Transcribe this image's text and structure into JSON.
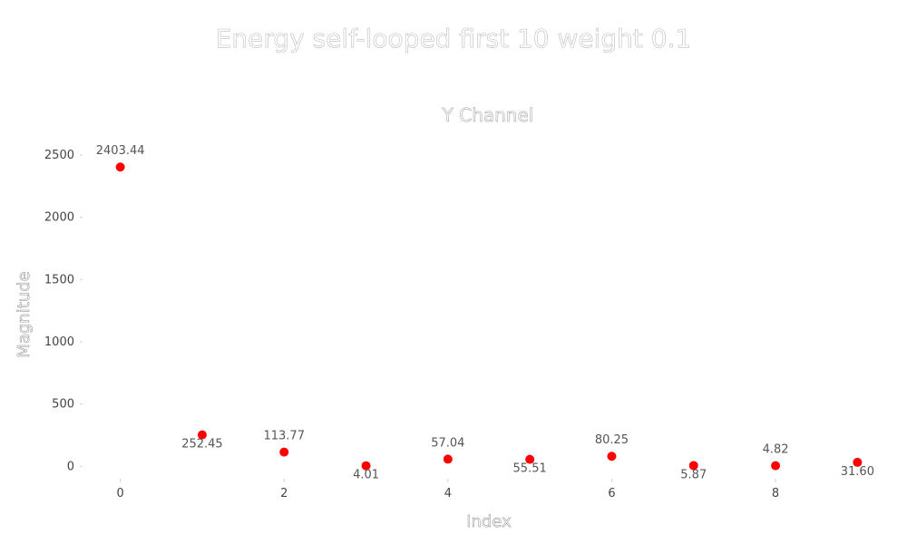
{
  "title": "Energy self-looped first 10 weight 0.1",
  "chart_data": {
    "type": "scatter",
    "title": "Y Channel",
    "xlabel": "Index",
    "ylabel": "Magnitude",
    "marker_color": "#ff0000",
    "x": [
      0,
      1,
      2,
      3,
      4,
      5,
      6,
      7,
      8,
      9
    ],
    "y": [
      2403.44,
      252.45,
      113.77,
      4.01,
      57.04,
      55.51,
      80.25,
      5.87,
      4.82,
      31.6
    ],
    "labels": [
      "2403.44",
      "252.45",
      "113.77",
      "4.01",
      "57.04",
      "55.51",
      "80.25",
      "5.87",
      "4.82",
      "31.60"
    ],
    "label_position": [
      "above",
      "below",
      "above",
      "below",
      "above",
      "below",
      "above",
      "below",
      "above",
      "below"
    ],
    "xticks": [
      "0",
      "2",
      "4",
      "6",
      "8"
    ],
    "yticks": [
      "0",
      "500",
      "1000",
      "1500",
      "2000",
      "2500"
    ],
    "xlim": [
      -0.45,
      9.45
    ],
    "ylim": [
      -100,
      2580
    ],
    "grid": false,
    "legend": "none"
  }
}
